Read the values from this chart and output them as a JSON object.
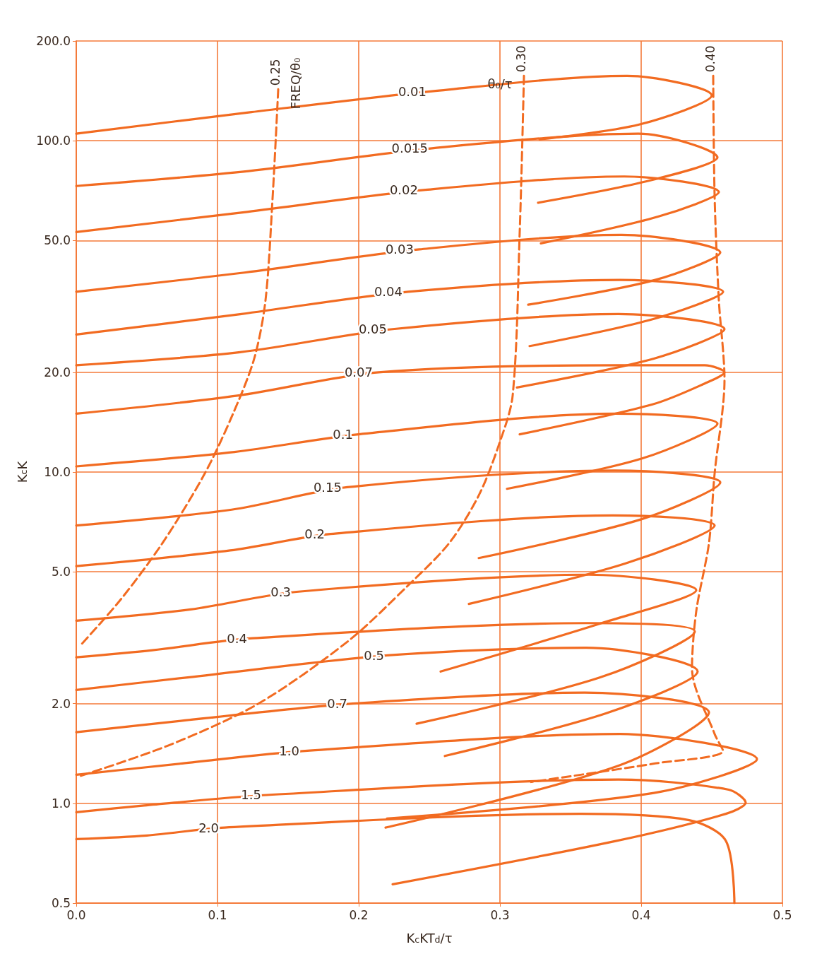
{
  "chart_data": {
    "type": "line",
    "xlabel": "K$_{c}$KT$_{d}$/τ",
    "ylabel": "K$_{c}$K",
    "log": "y",
    "grid": true,
    "marker": "none",
    "line_style": "solid",
    "xlim": [
      0,
      0.5
    ],
    "xticks": [
      {
        "value": 0,
        "label": "0.0"
      },
      0.1,
      0.2,
      0.3,
      0.4,
      0.5
    ],
    "ylim": [
      0.5,
      200
    ],
    "yticks": [
      0.5,
      {
        "value": 1,
        "label": "1.0"
      },
      {
        "value": 2,
        "label": "2.0"
      },
      {
        "value": 5,
        "label": "5.0"
      },
      {
        "value": 10,
        "label": "10.0"
      },
      {
        "value": 20,
        "label": "20.0"
      },
      {
        "value": 50,
        "label": "50.0"
      },
      {
        "value": 100,
        "label": "100.0"
      },
      {
        "value": 200,
        "label": "200.0"
      }
    ],
    "annotations": [
      "θ₀/τ",
      "FREQ/θ₀"
    ],
    "series": [
      {
        "name": "0.01",
        "color": "#f26b21",
        "x": [
          0,
          0.124,
          0.252,
          0.39,
          0.45,
          0.399,
          0.328
        ],
        "values": [
          105,
          122,
          141,
          157,
          137,
          112,
          101
        ]
      },
      {
        "name": "0.015",
        "color": "#f26b21",
        "x": [
          0,
          0.122,
          0.253,
          0.398,
          0.454,
          0.407,
          0.327
        ],
        "values": [
          73,
          81,
          95,
          105,
          89,
          76,
          65
        ]
      },
      {
        "name": "0.02",
        "color": "#f26b21",
        "x": [
          0,
          0.121,
          0.246,
          0.388,
          0.455,
          0.412,
          0.329
        ],
        "values": [
          53,
          61,
          71,
          78,
          70,
          59,
          49
        ]
      },
      {
        "name": "0.03",
        "color": "#f26b21",
        "x": [
          0,
          0.119,
          0.243,
          0.386,
          0.456,
          0.41,
          0.32
        ],
        "values": [
          35,
          40,
          47,
          52,
          46,
          38,
          32
        ]
      },
      {
        "name": "0.04",
        "color": "#f26b21",
        "x": [
          0,
          0.117,
          0.235,
          0.385,
          0.458,
          0.409,
          0.321
        ],
        "values": [
          26,
          30,
          35,
          38,
          35,
          29,
          24
        ]
      },
      {
        "name": "0.05",
        "color": "#f26b21",
        "x": [
          0,
          0.116,
          0.224,
          0.384,
          0.459,
          0.409,
          0.312
        ],
        "values": [
          21,
          23,
          27,
          30,
          27,
          22,
          18
        ]
      },
      {
        "name": "0.07",
        "color": "#f26b21",
        "x": [
          0,
          0.114,
          0.214,
          0.383,
          0.445,
          0.459,
          0.445,
          0.408,
          0.314
        ],
        "values": [
          15,
          17,
          20,
          21,
          21,
          20,
          18.5,
          16,
          13
        ]
      },
      {
        "name": "0.1",
        "color": "#f26b21",
        "x": [
          0,
          0.112,
          0.2,
          0.382,
          0.454,
          0.401,
          0.305
        ],
        "values": [
          10.4,
          11.5,
          13,
          15,
          14,
          11,
          8.9
        ]
      },
      {
        "name": "0.15",
        "color": "#f26b21",
        "x": [
          0,
          0.11,
          0.192,
          0.381,
          0.456,
          0.4,
          0.285
        ],
        "values": [
          6.9,
          7.7,
          9,
          10.1,
          9.3,
          7.2,
          5.5
        ]
      },
      {
        "name": "0.2",
        "color": "#f26b21",
        "x": [
          0,
          0.109,
          0.18,
          0.38,
          0.452,
          0.389,
          0.278
        ],
        "values": [
          5.2,
          5.8,
          6.5,
          7.4,
          6.9,
          5.3,
          4
        ]
      },
      {
        "name": "0.3",
        "color": "#f26b21",
        "x": [
          0,
          0.081,
          0.156,
          0.363,
          0.439,
          0.372,
          0.258
        ],
        "values": [
          3.56,
          3.85,
          4.35,
          4.9,
          4.4,
          3.5,
          2.5
        ]
      },
      {
        "name": "0.4",
        "color": "#f26b21",
        "x": [
          0,
          0.054,
          0.125,
          0.362,
          0.438,
          0.371,
          0.241
        ],
        "values": [
          2.76,
          2.9,
          3.15,
          3.5,
          3.3,
          2.4,
          1.74
        ]
      },
      {
        "name": "0.5",
        "color": "#f26b21",
        "x": [
          0,
          0.079,
          0.222,
          0.361,
          0.44,
          0.375,
          0.261
        ],
        "values": [
          2.2,
          2.4,
          2.8,
          2.95,
          2.5,
          1.87,
          1.39
        ]
      },
      {
        "name": "0.7",
        "color": "#f26b21",
        "x": [
          0,
          0.077,
          0.196,
          0.36,
          0.448,
          0.384,
          0.219
        ],
        "values": [
          1.64,
          1.78,
          2,
          2.16,
          1.88,
          1.3,
          0.845
        ]
      },
      {
        "name": "1.0",
        "color": "#f26b21",
        "x": [
          0,
          0.075,
          0.162,
          0.385,
          0.482,
          0.409,
          0.22
        ],
        "values": [
          1.22,
          1.32,
          1.44,
          1.62,
          1.36,
          1.075,
          0.9
        ]
      },
      {
        "name": "1.5",
        "color": "#f26b21",
        "x": [
          0,
          0.048,
          0.135,
          0.384,
          0.462,
          0.474,
          0.46,
          0.382,
          0.224
        ],
        "values": [
          0.94,
          0.985,
          1.06,
          1.18,
          1.1,
          1.005,
          0.93,
          0.77,
          0.57
        ]
      },
      {
        "name": "2.0",
        "color": "#f26b21",
        "x": [
          0,
          0.05,
          0.105,
          0.357,
          0.434,
          0.46,
          0.466
        ],
        "values": [
          0.78,
          0.8,
          0.845,
          0.93,
          0.89,
          0.77,
          0.5
        ]
      },
      {
        "name": "0.25",
        "color": "#f26b21",
        "line_style": "dashed",
        "x": [
          0.143,
          0.139,
          0.134,
          0.126,
          0.111,
          0.091,
          0.061,
          0.031,
          0.003
        ],
        "values": [
          143,
          67,
          33,
          22,
          15,
          9.9,
          6.1,
          4.1,
          3
        ]
      },
      {
        "name": "0.30",
        "color": "#f26b21",
        "line_style": "dashed",
        "x": [
          0.317,
          0.314,
          0.309,
          0.299,
          0.285,
          0.264,
          0.235,
          0.193,
          0.129,
          0.066,
          0.003
        ],
        "values": [
          157,
          53,
          17,
          12,
          8.5,
          6.1,
          4.55,
          3.1,
          2,
          1.5,
          1.21
        ]
      },
      {
        "name": "0.40",
        "color": "#f26b21",
        "line_style": "dashed",
        "x": [
          0.451,
          0.452,
          0.455,
          0.459,
          0.452,
          0.448,
          0.439,
          0.436,
          0.452,
          0.458,
          0.41,
          0.322
        ],
        "values": [
          157,
          68,
          33,
          19,
          9.9,
          6.1,
          3.8,
          2.56,
          1.62,
          1.44,
          1.32,
          1.16
        ]
      }
    ]
  }
}
